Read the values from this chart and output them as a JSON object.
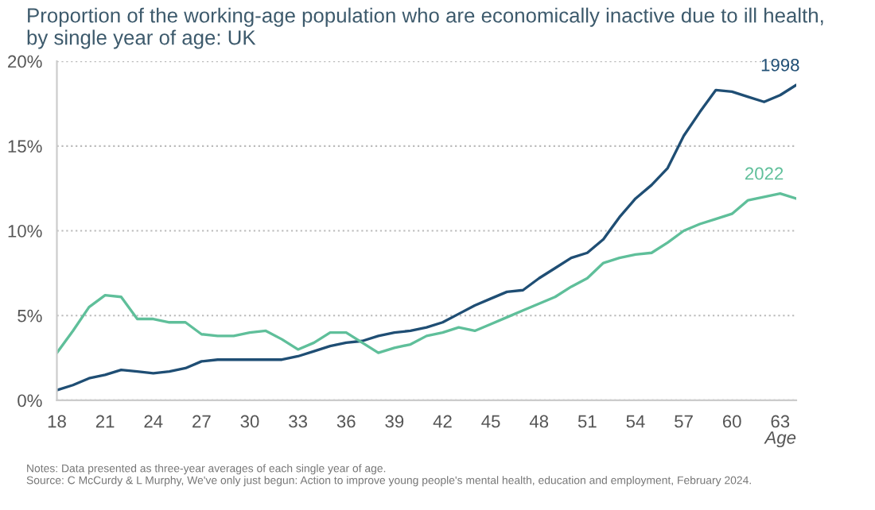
{
  "chart_data": {
    "type": "line",
    "title": "Proportion of the working-age population who are economically inactive due to ill health,\nby single year of age: UK",
    "xlabel": "Age",
    "x": [
      18,
      19,
      20,
      21,
      22,
      23,
      24,
      25,
      26,
      27,
      28,
      29,
      30,
      31,
      32,
      33,
      34,
      35,
      36,
      37,
      38,
      39,
      40,
      41,
      42,
      43,
      44,
      45,
      46,
      47,
      48,
      49,
      50,
      51,
      52,
      53,
      54,
      55,
      56,
      57,
      58,
      59,
      60,
      61,
      62,
      63,
      64
    ],
    "series": [
      {
        "name": "1998",
        "color": "#1f4e74",
        "values": [
          0.6,
          0.9,
          1.3,
          1.5,
          1.8,
          1.7,
          1.6,
          1.7,
          1.9,
          2.3,
          2.4,
          2.4,
          2.4,
          2.4,
          2.4,
          2.6,
          2.9,
          3.2,
          3.4,
          3.5,
          3.8,
          4.0,
          4.1,
          4.3,
          4.6,
          5.1,
          5.6,
          6.0,
          6.4,
          6.5,
          7.2,
          7.8,
          8.4,
          8.7,
          9.5,
          10.8,
          11.9,
          12.7,
          13.7,
          15.6,
          17.0,
          18.3,
          18.2,
          17.9,
          17.6,
          18.0,
          18.6
        ]
      },
      {
        "name": "2022",
        "color": "#5fbf9a",
        "values": [
          2.8,
          4.1,
          5.5,
          6.2,
          6.1,
          4.8,
          4.8,
          4.6,
          4.6,
          3.9,
          3.8,
          3.8,
          4.0,
          4.1,
          3.6,
          3.0,
          3.4,
          4.0,
          4.0,
          3.4,
          2.8,
          3.1,
          3.3,
          3.8,
          4.0,
          4.3,
          4.1,
          4.5,
          4.9,
          5.3,
          5.7,
          6.1,
          6.7,
          7.2,
          8.1,
          8.4,
          8.6,
          8.7,
          9.3,
          10.0,
          10.4,
          10.7,
          11.0,
          11.8,
          12.0,
          12.2,
          11.9
        ]
      }
    ],
    "xlim": [
      18,
      64
    ],
    "xticks": [
      18,
      21,
      24,
      27,
      30,
      33,
      36,
      39,
      42,
      45,
      48,
      51,
      54,
      57,
      60,
      63
    ],
    "ylim": [
      0,
      20
    ],
    "yticks": [
      {
        "value": 0,
        "label": "0%"
      },
      {
        "value": 5,
        "label": "5%"
      },
      {
        "value": 10,
        "label": "10%"
      },
      {
        "value": 15,
        "label": "15%"
      },
      {
        "value": 20,
        "label": "20%"
      }
    ],
    "grid": "y",
    "legend": false,
    "marker": "none",
    "line_style": "solid",
    "annotations": [
      "Notes: Data presented as three-year averages of each single year of age.\nSource: C McCurdy & L Murphy, We've only just begun: Action to improve young people's mental health, education and employment, February 2024."
    ]
  }
}
